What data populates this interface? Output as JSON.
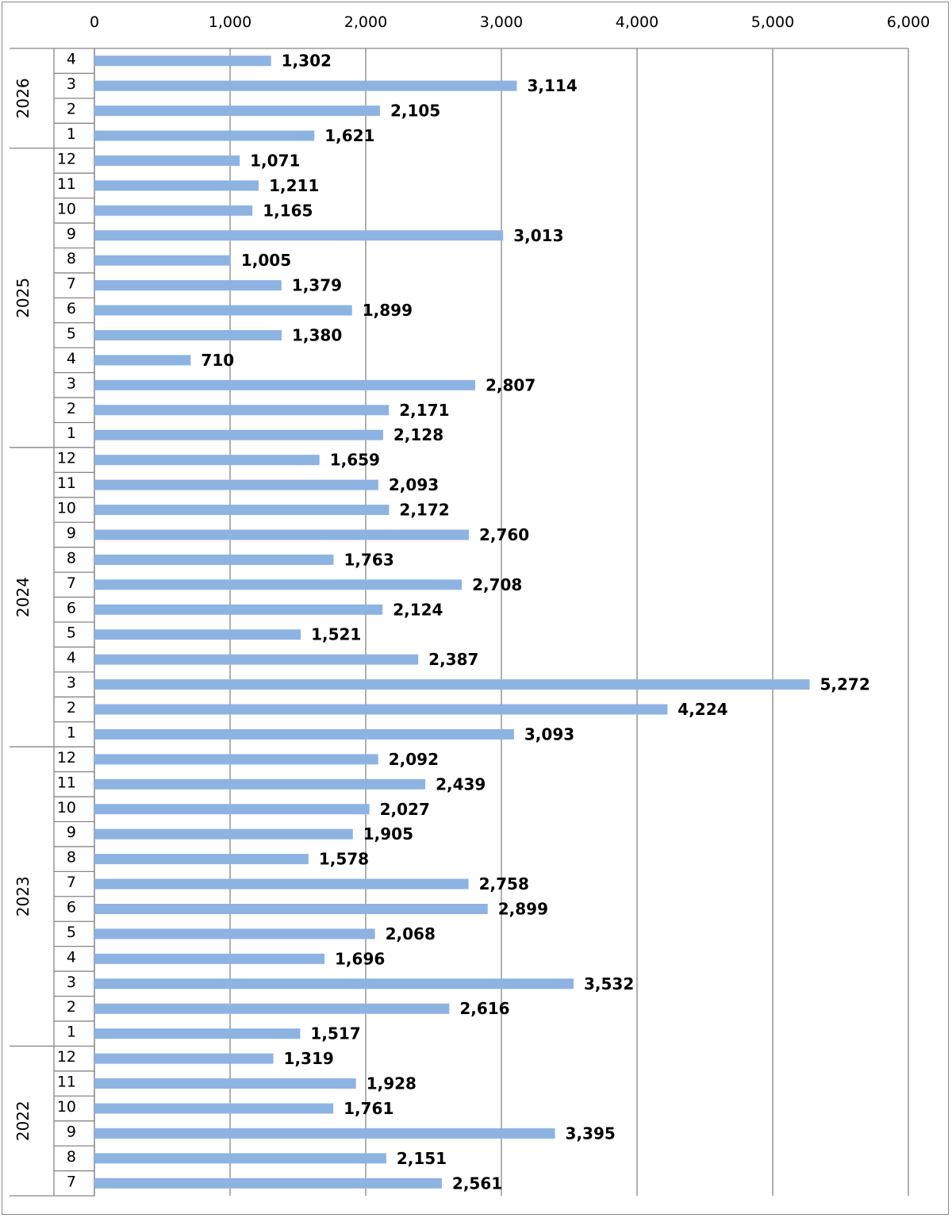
{
  "chart_data": {
    "type": "bar",
    "orientation": "horizontal",
    "title": "",
    "xlabel": "",
    "ylabel": "",
    "xlim": [
      0,
      6000
    ],
    "x_ticks": [
      "0",
      "1,000",
      "2,000",
      "3,000",
      "4,000",
      "5,000",
      "6,000"
    ],
    "x_axis_position": "top",
    "grid": "vertical",
    "legend": "none",
    "bar_color": "#8DB3E2",
    "years": [
      {
        "year": "2026",
        "months": [
          "4",
          "3",
          "2",
          "1"
        ]
      },
      {
        "year": "2025",
        "months": [
          "12",
          "11",
          "10",
          "9",
          "8",
          "7",
          "6",
          "5",
          "4",
          "3",
          "2",
          "1"
        ]
      },
      {
        "year": "2024",
        "months": [
          "12",
          "11",
          "10",
          "9",
          "8",
          "7",
          "6",
          "5",
          "4",
          "3",
          "2",
          "1"
        ]
      },
      {
        "year": "2023",
        "months": [
          "12",
          "11",
          "10",
          "9",
          "8",
          "7",
          "6",
          "5",
          "4",
          "3",
          "2",
          "1"
        ]
      },
      {
        "year": "2022",
        "months": [
          "12",
          "11",
          "10",
          "9",
          "8",
          "7"
        ]
      }
    ],
    "values": [
      1302,
      3114,
      2105,
      1621,
      1071,
      1211,
      1165,
      3013,
      1005,
      1379,
      1899,
      1380,
      710,
      2807,
      2171,
      2128,
      1659,
      2093,
      2172,
      2760,
      1763,
      2708,
      2124,
      1521,
      2387,
      5272,
      4224,
      3093,
      2092,
      2439,
      2027,
      1905,
      1578,
      2758,
      2899,
      2068,
      1696,
      3532,
      2616,
      1517,
      1319,
      1928,
      1761,
      3395,
      2151,
      2561
    ],
    "value_labels": [
      "1,302",
      "3,114",
      "2,105",
      "1,621",
      "1,071",
      "1,211",
      "1,165",
      "3,013",
      "1,005",
      "1,379",
      "1,899",
      "1,380",
      "710",
      "2,807",
      "2,171",
      "2,128",
      "1,659",
      "2,093",
      "2,172",
      "2,760",
      "1,763",
      "2,708",
      "2,124",
      "1,521",
      "2,387",
      "5,272",
      "4,224",
      "3,093",
      "2,092",
      "2,439",
      "2,027",
      "1,905",
      "1,578",
      "2,758",
      "2,899",
      "2,068",
      "1,696",
      "3,532",
      "2,616",
      "1,517",
      "1,319",
      "1,928",
      "1,761",
      "3,395",
      "2,151",
      "2,561"
    ]
  }
}
